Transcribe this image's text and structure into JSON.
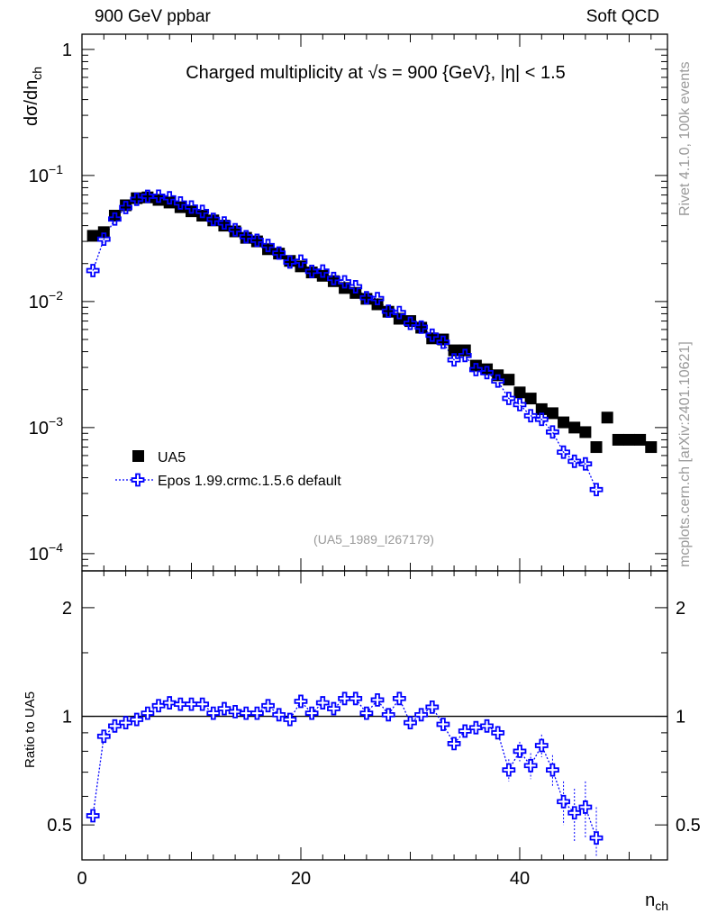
{
  "header": {
    "left": "900 GeV ppbar",
    "right": "Soft QCD"
  },
  "side": {
    "rivet": "Rivet 4.1.0,  100k events",
    "mcplots": "mcplots.cern.ch [arXiv:2401.10621]"
  },
  "chart_data": {
    "type": "scatter",
    "title": "Charged multiplicity at √s = 900 {GeV}, |η| < 1.5",
    "analysis_id": "(UA5_1989_I267179)",
    "xlabel": "n_ch",
    "ylabel": "dσ/dn_ch",
    "ratio_ylabel": "Ratio to UA5",
    "xlim": [
      0,
      53.5
    ],
    "ylim": [
      7.3e-05,
      1.32
    ],
    "yscale": "log",
    "ratio_ylim": [
      0.4,
      2.53
    ],
    "ratio_yscale": "log",
    "x_ticks": [
      "0",
      "20",
      "40"
    ],
    "y_ticks": [
      {
        "v": 1,
        "base": "1",
        "exp": ""
      },
      {
        "v": 0.1,
        "base": "10",
        "exp": "−1"
      },
      {
        "v": 0.01,
        "base": "10",
        "exp": "−2"
      },
      {
        "v": 0.001,
        "base": "10",
        "exp": "−3"
      },
      {
        "v": 0.0001,
        "base": "10",
        "exp": "−4"
      }
    ],
    "ratio_ticks": [
      {
        "v": 2,
        "label": "2"
      },
      {
        "v": 1,
        "label": "1"
      },
      {
        "v": 0.5,
        "label": "0.5"
      }
    ],
    "legend": {
      "placement": "bottom-left",
      "entries": [
        "UA5",
        "Epos 1.99.crmc.1.5.6 default"
      ]
    },
    "series": [
      {
        "name": "UA5",
        "color": "#000000",
        "x": [
          1,
          2,
          3,
          4,
          5,
          6,
          7,
          8,
          9,
          10,
          11,
          12,
          13,
          14,
          15,
          16,
          17,
          18,
          19,
          20,
          21,
          22,
          23,
          24,
          25,
          26,
          27,
          28,
          29,
          30,
          31,
          32,
          33,
          34,
          35,
          36,
          37,
          38,
          39,
          40,
          41,
          42,
          43,
          44,
          45,
          46,
          47,
          48,
          49,
          50,
          51,
          52
        ],
        "y": [
          0.0332,
          0.0355,
          0.048,
          0.058,
          0.066,
          0.067,
          0.064,
          0.061,
          0.056,
          0.052,
          0.048,
          0.044,
          0.04,
          0.036,
          0.032,
          0.03,
          0.026,
          0.024,
          0.021,
          0.019,
          0.017,
          0.016,
          0.0145,
          0.0128,
          0.0117,
          0.0105,
          0.0095,
          0.0083,
          0.0073,
          0.007,
          0.0062,
          0.0051,
          0.005,
          0.0041,
          0.0041,
          0.0031,
          0.0029,
          0.0026,
          0.0024,
          0.0019,
          0.0017,
          0.0014,
          0.0013,
          0.0011,
          0.001,
          0.00092,
          0.0007,
          0.0012,
          0.0008,
          0.0008,
          0.0008,
          0.0007
        ]
      },
      {
        "name": "Epos 1.99.crmc.1.5.6 default",
        "color": "#0000ff",
        "x": [
          1,
          2,
          3,
          4,
          5,
          6,
          7,
          8,
          9,
          10,
          11,
          12,
          13,
          14,
          15,
          16,
          17,
          18,
          19,
          20,
          21,
          22,
          23,
          24,
          25,
          26,
          27,
          28,
          29,
          30,
          31,
          32,
          33,
          34,
          35,
          36,
          37,
          38,
          39,
          40,
          41,
          42,
          43,
          44,
          45,
          46,
          47
        ],
        "ratio": [
          0.53,
          0.88,
          0.94,
          0.96,
          0.98,
          1.02,
          1.07,
          1.09,
          1.08,
          1.08,
          1.08,
          1.02,
          1.05,
          1.03,
          1.02,
          1.02,
          1.07,
          1.01,
          0.98,
          1.1,
          1.02,
          1.09,
          1.05,
          1.12,
          1.12,
          1.02,
          1.11,
          1.01,
          1.12,
          0.96,
          1.01,
          1.06,
          0.95,
          0.84,
          0.91,
          0.93,
          0.94,
          0.9,
          0.71,
          0.8,
          0.73,
          0.83,
          0.71,
          0.58,
          0.54,
          0.56,
          0.46
        ],
        "ratio_err": [
          0.01,
          0.01,
          0.01,
          0.01,
          0.01,
          0.01,
          0.01,
          0.01,
          0.01,
          0.01,
          0.01,
          0.01,
          0.01,
          0.01,
          0.01,
          0.01,
          0.01,
          0.01,
          0.01,
          0.01,
          0.01,
          0.01,
          0.01,
          0.01,
          0.01,
          0.01,
          0.01,
          0.01,
          0.02,
          0.02,
          0.02,
          0.03,
          0.03,
          0.03,
          0.03,
          0.03,
          0.04,
          0.04,
          0.05,
          0.05,
          0.06,
          0.06,
          0.07,
          0.08,
          0.09,
          0.1,
          0.1
        ]
      }
    ]
  }
}
